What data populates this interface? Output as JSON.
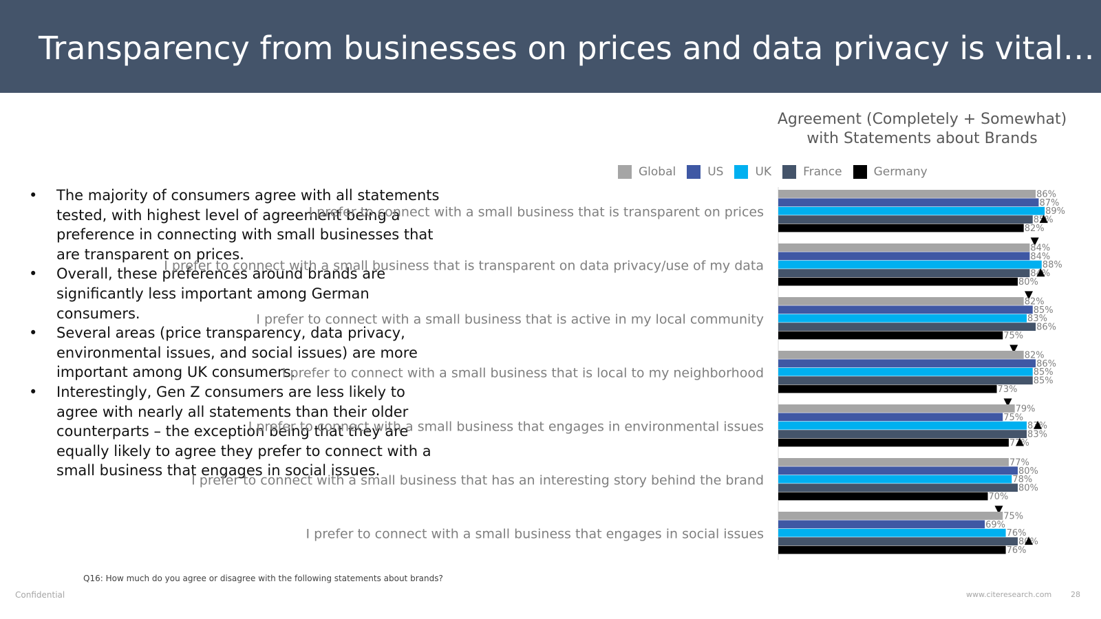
{
  "title": "Transparency from businesses on prices and data privacy is vital…",
  "bullets": [
    "The majority of consumers agree with all statements tested, with highest level of agreement being a preference in connecting with small businesses that are transparent on prices.",
    "Overall, these preferences around brands are significantly less important among German consumers.",
    "Several areas (price transparency, data privacy, environmental issues, and social issues) are more important among UK consumers.",
    "Interestingly, Gen Z consumers are less likely to agree with nearly all statements than their older counterparts – the exception being that they are equally likely to agree they prefer to connect with a small business that engages in social issues."
  ],
  "footer": {
    "question": "Q16: How much do you agree or disagree with the following statements about brands?",
    "confidential": "Confidential",
    "website": "www.citeresearch.com",
    "page": "28"
  },
  "chart_data": {
    "type": "bar",
    "orientation": "horizontal",
    "title": "Agreement (Completely + Somewhat) with Statements about Brands",
    "legend_position": "top",
    "xlim": [
      0,
      100
    ],
    "categories": [
      "I prefer to connect with a small business that is transparent on prices",
      "I prefer to connect with a small business that is transparent on data privacy/use of my data",
      "I prefer to connect with a small business that is active in my local community",
      "I prefer to connect with a small business that is local to my neighborhood",
      "I prefer to connect with a small business that engages in environmental issues",
      "I prefer to connect with a small business that has an interesting story behind the brand",
      "I prefer to connect with a small business that engages in social issues"
    ],
    "series": [
      {
        "name": "Global",
        "color": "#a5a5a5",
        "values": [
          86,
          84,
          82,
          82,
          79,
          77,
          75
        ]
      },
      {
        "name": "US",
        "color": "#3f58a4",
        "values": [
          87,
          84,
          85,
          86,
          75,
          80,
          69
        ]
      },
      {
        "name": "UK",
        "color": "#00b0f0",
        "values": [
          89,
          88,
          83,
          85,
          83,
          78,
          76
        ]
      },
      {
        "name": "France",
        "color": "#44546a",
        "values": [
          85,
          84,
          86,
          85,
          83,
          80,
          80
        ]
      },
      {
        "name": "Germany",
        "color": "#000000",
        "values": [
          82,
          80,
          75,
          73,
          77,
          70,
          76
        ]
      }
    ],
    "value_suffix": "%",
    "significance": [
      {
        "category": 0,
        "series": "France",
        "direction": "up"
      },
      {
        "category": 0,
        "series": "Germany",
        "direction": "down"
      },
      {
        "category": 1,
        "series": "France",
        "direction": "up"
      },
      {
        "category": 1,
        "series": "Germany",
        "direction": "down"
      },
      {
        "category": 2,
        "series": "Germany",
        "direction": "down"
      },
      {
        "category": 3,
        "series": "Germany",
        "direction": "down"
      },
      {
        "category": 4,
        "series": "UK",
        "direction": "up"
      },
      {
        "category": 4,
        "series": "Germany",
        "direction": "up"
      },
      {
        "category": 5,
        "series": "Germany",
        "direction": "down"
      },
      {
        "category": 6,
        "series": "France",
        "direction": "up"
      }
    ]
  }
}
